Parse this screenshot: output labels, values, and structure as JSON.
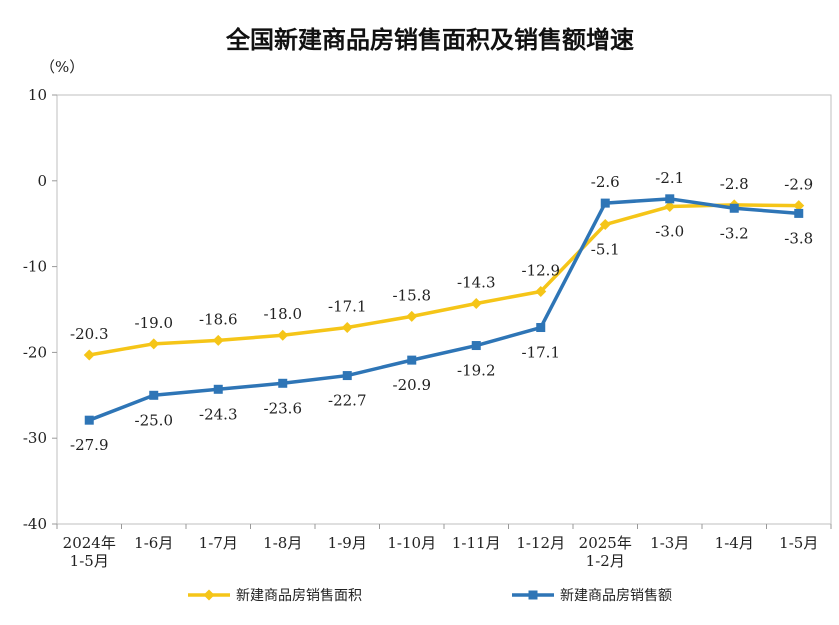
{
  "chart_data": {
    "type": "line",
    "title": "全国新建商品房销售面积及销售额增速",
    "unit": "（%）",
    "categories": [
      [
        "2024年",
        "1-5月"
      ],
      [
        "1-6月"
      ],
      [
        "1-7月"
      ],
      [
        "1-8月"
      ],
      [
        "1-9月"
      ],
      [
        "1-10月"
      ],
      [
        "1-11月"
      ],
      [
        "1-12月"
      ],
      [
        "2025年",
        "1-2月"
      ],
      [
        "1-3月"
      ],
      [
        "1-4月"
      ],
      [
        "1-5月"
      ]
    ],
    "ylim": [
      -40,
      10
    ],
    "yticks": [
      10,
      0,
      -10,
      -20,
      -30,
      -40
    ],
    "grid": false,
    "legend_position": "bottom",
    "series": [
      {
        "name": "新建商品房销售面积",
        "color": "#F5C518",
        "marker": "diamond",
        "values": [
          -20.3,
          -19.0,
          -18.6,
          -18.0,
          -17.1,
          -15.8,
          -14.3,
          -12.9,
          -5.1,
          -3.0,
          -2.8,
          -2.9
        ],
        "labels": [
          "-20.3",
          "-19.0",
          "-18.6",
          "-18.0",
          "-17.1",
          "-15.8",
          "-14.3",
          "-12.9",
          "-5.1",
          "-3.0",
          "-2.8",
          "-2.9"
        ]
      },
      {
        "name": "新建商品房销售额",
        "color": "#2E75B6",
        "marker": "square",
        "values": [
          -27.9,
          -25.0,
          -24.3,
          -23.6,
          -22.7,
          -20.9,
          -19.2,
          -17.1,
          -2.6,
          -2.1,
          -3.2,
          -3.8
        ],
        "labels": [
          "-27.9",
          "-25.0",
          "-24.3",
          "-23.6",
          "-22.7",
          "-20.9",
          "-19.2",
          "-17.1",
          "-2.6",
          "-2.1",
          "-3.2",
          "-3.8"
        ]
      }
    ]
  }
}
